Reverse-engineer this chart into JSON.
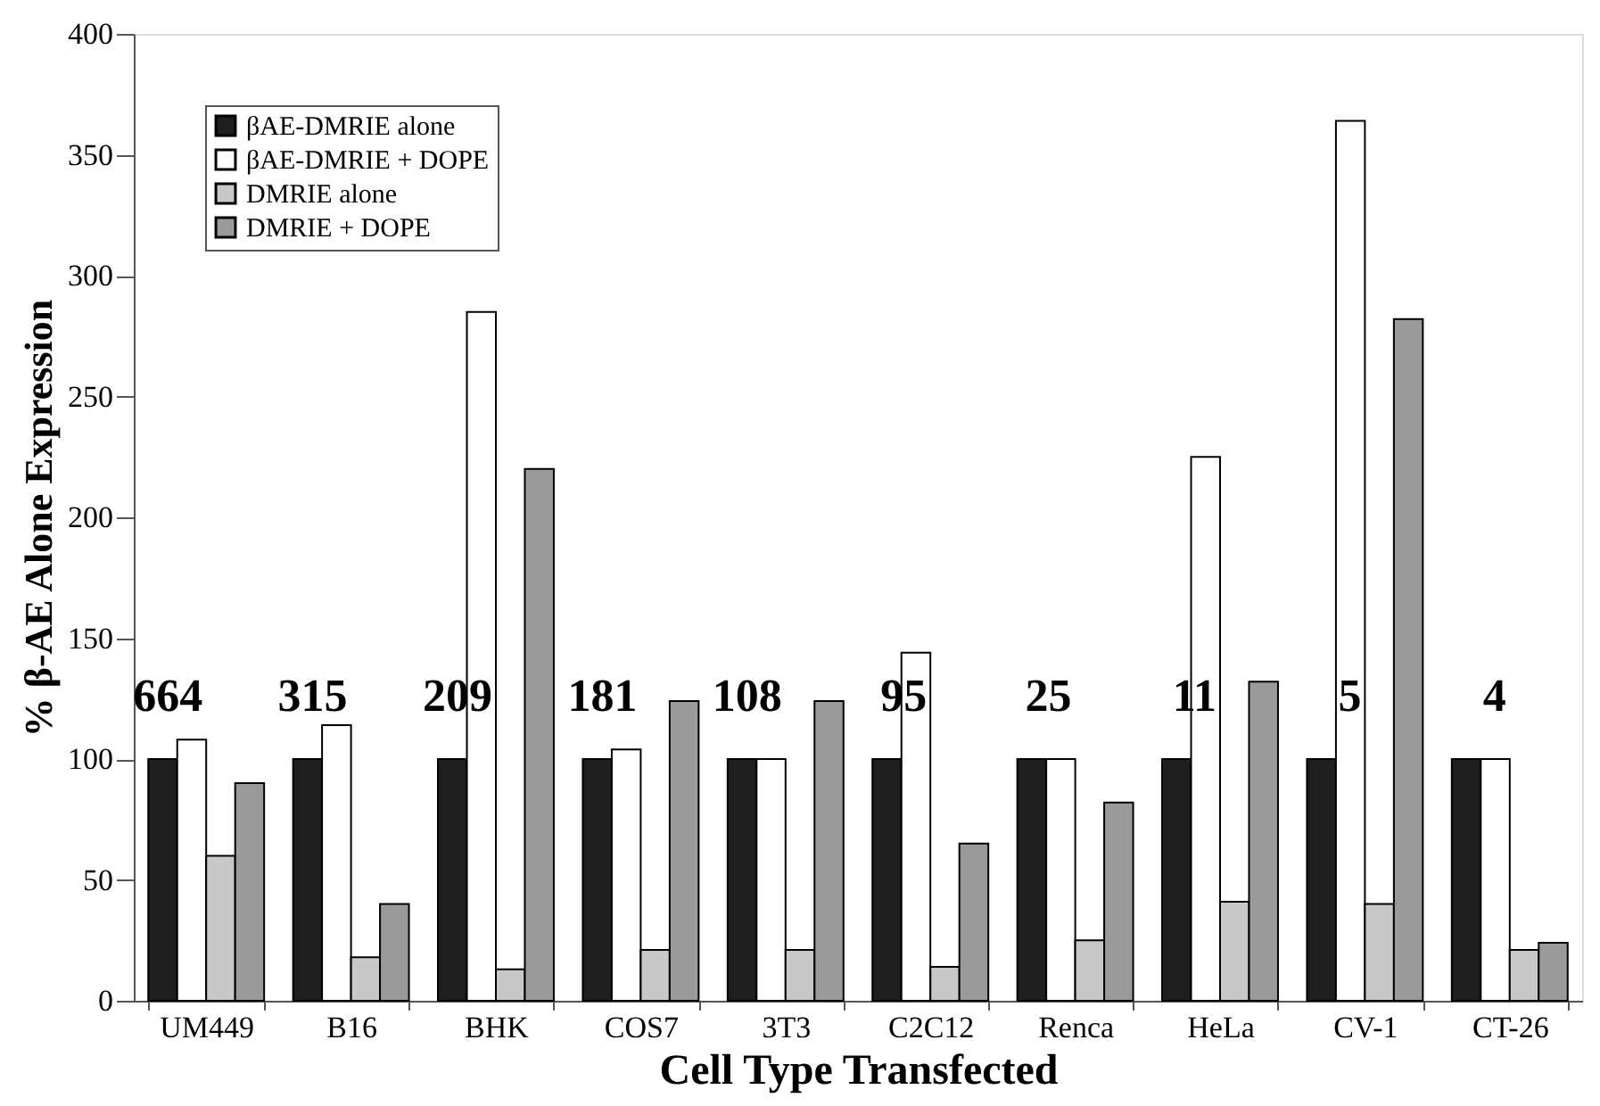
{
  "chart_data": {
    "type": "bar",
    "xlabel": "Cell Type Transfected",
    "ylabel": "% β-AE Alone Expression",
    "categories": [
      "UM449",
      "B16",
      "BHK",
      "COS7",
      "3T3",
      "C2C12",
      "Renca",
      "HeLa",
      "CV-1",
      "CT-26"
    ],
    "series": [
      {
        "name": "βAE-DMRIE alone",
        "color": "#1e1e1e",
        "values": [
          100,
          100,
          100,
          100,
          100,
          100,
          100,
          100,
          100,
          100
        ]
      },
      {
        "name": "βAE-DMRIE + DOPE",
        "color": "#ffffff",
        "values": [
          108,
          114,
          285,
          104,
          100,
          144,
          100,
          225,
          364,
          100
        ]
      },
      {
        "name": "DMRIE alone",
        "color": "#c8c8c8",
        "values": [
          60,
          18,
          13,
          21,
          21,
          14,
          25,
          41,
          40,
          21
        ]
      },
      {
        "name": "DMRIE + DOPE",
        "color": "#9a9a9a",
        "values": [
          90,
          40,
          220,
          124,
          124,
          65,
          82,
          132,
          282,
          24
        ]
      }
    ],
    "ylim": [
      0,
      400
    ],
    "yticks": [
      0,
      50,
      100,
      150,
      200,
      250,
      300,
      350,
      400
    ],
    "grid": false,
    "legend": "top left",
    "annotations": [
      "664",
      "315",
      "209",
      "181",
      "108",
      "95",
      "25",
      "11",
      "5",
      "4"
    ]
  }
}
